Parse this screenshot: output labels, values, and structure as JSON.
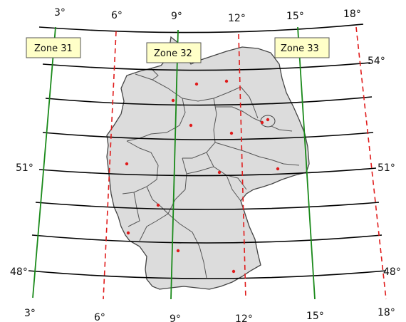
{
  "map": {
    "longitude_labels_top": [
      "3°",
      "6°",
      "9°",
      "12°",
      "15°",
      "18°"
    ],
    "longitude_labels_bottom": [
      "3°",
      "6°",
      "9°",
      "12°",
      "15°",
      "18°"
    ],
    "latitude_labels_left": [
      "51°",
      "48°"
    ],
    "latitude_labels_right": [
      "54°",
      "51°",
      "48°"
    ],
    "zones": [
      "Zone 31",
      "Zone 32",
      "Zone 33"
    ],
    "colors": {
      "graticule": "#000000",
      "zone_central_meridian": "#1a8a1a",
      "zone_boundary": "#e01b1b",
      "land_fill": "#dcdcdc",
      "border": "#555555",
      "city": "#e01b1b",
      "zone_label_bg": "#ffffc8"
    }
  }
}
